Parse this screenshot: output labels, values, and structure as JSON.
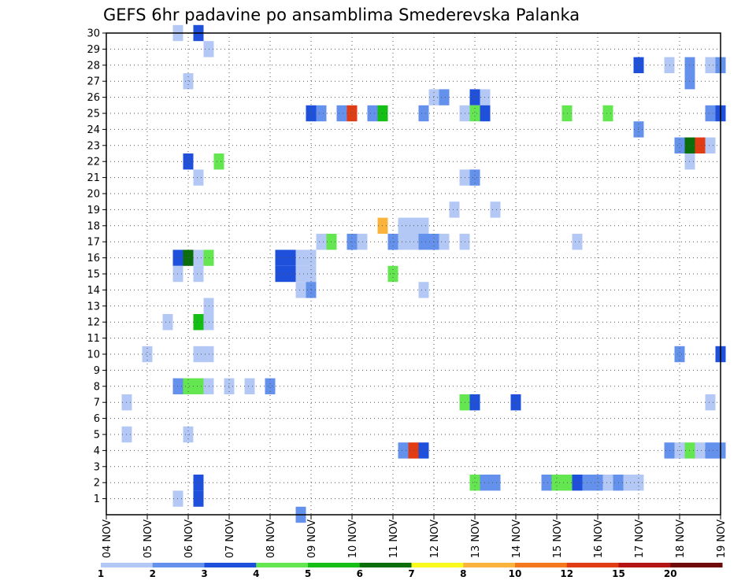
{
  "chart_data": {
    "type": "heatmap",
    "title": "GEFS 6hr padavine po ansamblima Smederevska Palanka",
    "xlabel": "",
    "ylabel": "",
    "x_ticks": [
      "04 NOV",
      "05 NOV",
      "06 NOV",
      "07 NOV",
      "08 NOV",
      "09 NOV",
      "10 NOV",
      "11 NOV",
      "12 NOV",
      "13 NOV",
      "14 NOV",
      "15 NOV",
      "16 NOV",
      "17 NOV",
      "18 NOV",
      "19 NOV"
    ],
    "y_ticks": [
      1,
      2,
      3,
      4,
      5,
      6,
      7,
      8,
      9,
      10,
      11,
      12,
      13,
      14,
      15,
      16,
      17,
      18,
      19,
      20,
      21,
      22,
      23,
      24,
      25,
      26,
      27,
      28,
      29,
      30
    ],
    "x_steps_per_day": 4,
    "x_range_steps": [
      0,
      60
    ],
    "y_range": [
      0,
      30
    ],
    "grid": true,
    "legend": {
      "placement": "bottom",
      "thresholds": [
        "1",
        "2",
        "3",
        "4",
        "5",
        "6",
        "7",
        "8",
        "10",
        "12",
        "15",
        "20"
      ],
      "colors": [
        "#b4c8f5",
        "#6491ec",
        "#1e50dc",
        "#64e650",
        "#14be14",
        "#0a6e0a",
        "#fafa1e",
        "#fab43c",
        "#f5781e",
        "#e13c14",
        "#b41414",
        "#6e0a0a"
      ]
    },
    "cells": [
      [
        7,
        30,
        1
      ],
      [
        9,
        30,
        3
      ],
      [
        10,
        29,
        1
      ],
      [
        52,
        28,
        3
      ],
      [
        55,
        28,
        1
      ],
      [
        57,
        28,
        2
      ],
      [
        59,
        28,
        1
      ],
      [
        60,
        28,
        2
      ],
      [
        8,
        27,
        1
      ],
      [
        57,
        27,
        2
      ],
      [
        32,
        26,
        1
      ],
      [
        33,
        26,
        2
      ],
      [
        36,
        26,
        3
      ],
      [
        37,
        26,
        1
      ],
      [
        20,
        25,
        3
      ],
      [
        21,
        25,
        2
      ],
      [
        23,
        25,
        2
      ],
      [
        24,
        25,
        10
      ],
      [
        26,
        25,
        2
      ],
      [
        27,
        25,
        5
      ],
      [
        31,
        25,
        2
      ],
      [
        35,
        25,
        1
      ],
      [
        36,
        25,
        4
      ],
      [
        37,
        25,
        3
      ],
      [
        45,
        25,
        4
      ],
      [
        49,
        25,
        4
      ],
      [
        59,
        25,
        2
      ],
      [
        60,
        25,
        3
      ],
      [
        52,
        24,
        2
      ],
      [
        56,
        23,
        2
      ],
      [
        57,
        23,
        6
      ],
      [
        58,
        23,
        10
      ],
      [
        59,
        23,
        1
      ],
      [
        8,
        22,
        3
      ],
      [
        11,
        22,
        4
      ],
      [
        57,
        22,
        1
      ],
      [
        9,
        21,
        1
      ],
      [
        35,
        21,
        1
      ],
      [
        36,
        21,
        2
      ],
      [
        34,
        19,
        1
      ],
      [
        38,
        19,
        1
      ],
      [
        27,
        18,
        8
      ],
      [
        29,
        18,
        1
      ],
      [
        30,
        18,
        1
      ],
      [
        31,
        18,
        1
      ],
      [
        21,
        17,
        1
      ],
      [
        22,
        17,
        4
      ],
      [
        24,
        17,
        2
      ],
      [
        25,
        17,
        1
      ],
      [
        28,
        17,
        2
      ],
      [
        29,
        17,
        1
      ],
      [
        30,
        17,
        1
      ],
      [
        31,
        17,
        2
      ],
      [
        32,
        17,
        2
      ],
      [
        33,
        17,
        1
      ],
      [
        35,
        17,
        1
      ],
      [
        46,
        17,
        1
      ],
      [
        7,
        16,
        3
      ],
      [
        8,
        16,
        6
      ],
      [
        9,
        16,
        1
      ],
      [
        10,
        16,
        4
      ],
      [
        17,
        16,
        3
      ],
      [
        18,
        16,
        3
      ],
      [
        19,
        16,
        1
      ],
      [
        20,
        16,
        1
      ],
      [
        7,
        15,
        1
      ],
      [
        9,
        15,
        1
      ],
      [
        17,
        15,
        3
      ],
      [
        18,
        15,
        3
      ],
      [
        19,
        15,
        1
      ],
      [
        20,
        15,
        1
      ],
      [
        28,
        15,
        4
      ],
      [
        19,
        14,
        1
      ],
      [
        20,
        14,
        2
      ],
      [
        31,
        14,
        1
      ],
      [
        10,
        13,
        1
      ],
      [
        6,
        12,
        1
      ],
      [
        9,
        12,
        5
      ],
      [
        10,
        12,
        1
      ],
      [
        4,
        10,
        1
      ],
      [
        9,
        10,
        1
      ],
      [
        10,
        10,
        1
      ],
      [
        56,
        10,
        2
      ],
      [
        60,
        10,
        3
      ],
      [
        7,
        8,
        2
      ],
      [
        8,
        8,
        4
      ],
      [
        9,
        8,
        4
      ],
      [
        10,
        8,
        1
      ],
      [
        12,
        8,
        1
      ],
      [
        14,
        8,
        1
      ],
      [
        16,
        8,
        2
      ],
      [
        2,
        7,
        1
      ],
      [
        35,
        7,
        4
      ],
      [
        36,
        7,
        3
      ],
      [
        40,
        7,
        3
      ],
      [
        59,
        7,
        1
      ],
      [
        2,
        5,
        1
      ],
      [
        8,
        5,
        1
      ],
      [
        29,
        4,
        2
      ],
      [
        30,
        4,
        10
      ],
      [
        31,
        4,
        3
      ],
      [
        55,
        4,
        2
      ],
      [
        56,
        4,
        1
      ],
      [
        57,
        4,
        4
      ],
      [
        58,
        4,
        1
      ],
      [
        59,
        4,
        2
      ],
      [
        60,
        4,
        2
      ],
      [
        9,
        2,
        3
      ],
      [
        36,
        2,
        4
      ],
      [
        37,
        2,
        2
      ],
      [
        38,
        2,
        2
      ],
      [
        43,
        2,
        2
      ],
      [
        44,
        2,
        4
      ],
      [
        45,
        2,
        4
      ],
      [
        46,
        2,
        3
      ],
      [
        47,
        2,
        2
      ],
      [
        48,
        2,
        2
      ],
      [
        49,
        2,
        1
      ],
      [
        50,
        2,
        2
      ],
      [
        51,
        2,
        1
      ],
      [
        52,
        2,
        1
      ],
      [
        7,
        1,
        1
      ],
      [
        9,
        1,
        3
      ],
      [
        19,
        0,
        2
      ]
    ]
  }
}
